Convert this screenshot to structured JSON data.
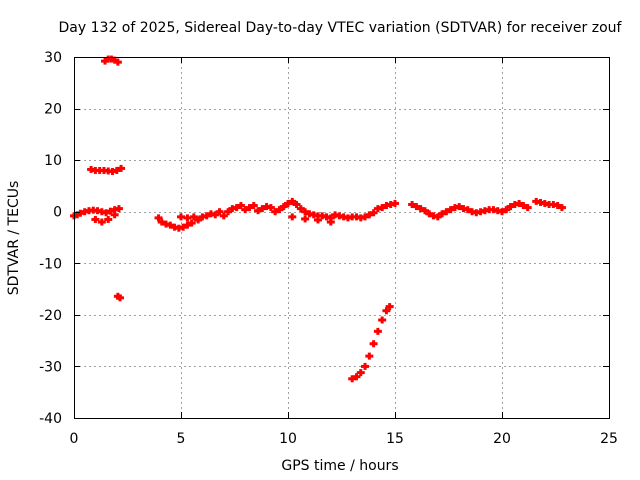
{
  "chart_data": {
    "type": "scatter",
    "title": "Day 132 of 2025, Sidereal Day-to-day VTEC variation (SDTVAR) for receiver zouf",
    "xlabel": "GPS time / hours",
    "ylabel": "SDTVAR / TECUs",
    "xlim": [
      0,
      25
    ],
    "ylim": [
      -40,
      30
    ],
    "xticks": [
      "0",
      "5",
      "10",
      "15",
      "20",
      "25"
    ],
    "yticks": [
      "30",
      "20",
      "10",
      "0",
      "-10",
      "-20",
      "-30",
      "-40"
    ],
    "grid": true,
    "legend": "none",
    "series": [
      {
        "name": "SDTVAR",
        "color": "#ff0000",
        "points": [
          [
            0.0,
            -0.8
          ],
          [
            0.15,
            -0.6
          ],
          [
            0.3,
            -0.3
          ],
          [
            0.5,
            0.0
          ],
          [
            0.7,
            0.2
          ],
          [
            0.9,
            0.3
          ],
          [
            1.1,
            0.2
          ],
          [
            1.3,
            0.0
          ],
          [
            1.5,
            -0.2
          ],
          [
            1.7,
            0.1
          ],
          [
            1.9,
            0.4
          ],
          [
            2.1,
            0.6
          ],
          [
            1.0,
            -1.5
          ],
          [
            1.3,
            -2.0
          ],
          [
            1.6,
            -1.5
          ],
          [
            1.9,
            -0.6
          ],
          [
            0.8,
            8.2
          ],
          [
            1.0,
            8.0
          ],
          [
            1.2,
            8.0
          ],
          [
            1.4,
            8.0
          ],
          [
            1.6,
            7.9
          ],
          [
            1.8,
            7.8
          ],
          [
            2.0,
            8.0
          ],
          [
            2.2,
            8.4
          ],
          [
            1.45,
            29.2
          ],
          [
            1.6,
            29.6
          ],
          [
            1.75,
            29.6
          ],
          [
            1.9,
            29.4
          ],
          [
            2.05,
            29.0
          ],
          [
            2.05,
            -16.4
          ],
          [
            2.15,
            -16.7
          ],
          [
            3.95,
            -1.2
          ],
          [
            4.1,
            -2.0
          ],
          [
            4.3,
            -2.4
          ],
          [
            4.5,
            -2.6
          ],
          [
            4.7,
            -3.0
          ],
          [
            4.9,
            -3.2
          ],
          [
            5.1,
            -3.0
          ],
          [
            5.3,
            -2.6
          ],
          [
            5.5,
            -2.2
          ],
          [
            5.0,
            -1.0
          ],
          [
            5.3,
            -1.2
          ],
          [
            5.6,
            -1.0
          ],
          [
            5.8,
            -1.6
          ],
          [
            6.0,
            -1.0
          ],
          [
            6.2,
            -0.8
          ],
          [
            6.4,
            -0.4
          ],
          [
            6.6,
            -0.6
          ],
          [
            6.8,
            0.0
          ],
          [
            7.0,
            -0.8
          ],
          [
            7.2,
            0.0
          ],
          [
            7.4,
            0.6
          ],
          [
            7.6,
            0.8
          ],
          [
            7.8,
            1.2
          ],
          [
            8.0,
            0.4
          ],
          [
            8.2,
            0.8
          ],
          [
            8.4,
            1.2
          ],
          [
            8.6,
            0.2
          ],
          [
            8.8,
            0.6
          ],
          [
            9.0,
            1.0
          ],
          [
            9.2,
            0.8
          ],
          [
            9.4,
            0.0
          ],
          [
            9.6,
            0.4
          ],
          [
            9.8,
            1.0
          ],
          [
            10.0,
            1.6
          ],
          [
            10.2,
            2.0
          ],
          [
            10.4,
            1.4
          ],
          [
            10.6,
            0.6
          ],
          [
            10.8,
            0.0
          ],
          [
            11.0,
            -0.4
          ],
          [
            11.2,
            -0.6
          ],
          [
            11.4,
            -0.8
          ],
          [
            11.6,
            -0.8
          ],
          [
            11.8,
            -1.0
          ],
          [
            12.0,
            -1.2
          ],
          [
            12.2,
            -0.6
          ],
          [
            12.4,
            -0.8
          ],
          [
            12.6,
            -1.0
          ],
          [
            12.8,
            -1.2
          ],
          [
            13.0,
            -1.0
          ],
          [
            13.2,
            -1.0
          ],
          [
            13.4,
            -1.2
          ],
          [
            13.6,
            -1.0
          ],
          [
            13.8,
            -0.6
          ],
          [
            14.0,
            -0.2
          ],
          [
            14.2,
            0.6
          ],
          [
            14.4,
            0.8
          ],
          [
            14.6,
            1.2
          ],
          [
            14.8,
            1.4
          ],
          [
            15.0,
            1.6
          ],
          [
            10.2,
            -1.0
          ],
          [
            10.8,
            -1.4
          ],
          [
            11.4,
            -1.6
          ],
          [
            12.0,
            -2.0
          ],
          [
            15.8,
            1.4
          ],
          [
            16.0,
            1.0
          ],
          [
            16.2,
            0.6
          ],
          [
            16.4,
            0.2
          ],
          [
            16.6,
            -0.4
          ],
          [
            16.8,
            -0.8
          ],
          [
            17.0,
            -1.0
          ],
          [
            17.2,
            -0.4
          ],
          [
            17.4,
            0.0
          ],
          [
            17.6,
            0.4
          ],
          [
            17.8,
            0.8
          ],
          [
            18.0,
            1.0
          ],
          [
            18.2,
            0.6
          ],
          [
            18.4,
            0.4
          ],
          [
            18.6,
            0.0
          ],
          [
            18.8,
            -0.2
          ],
          [
            19.0,
            0.0
          ],
          [
            19.2,
            0.2
          ],
          [
            19.4,
            0.4
          ],
          [
            19.6,
            0.4
          ],
          [
            19.8,
            0.2
          ],
          [
            20.0,
            0.0
          ],
          [
            20.2,
            0.4
          ],
          [
            20.4,
            1.0
          ],
          [
            20.6,
            1.4
          ],
          [
            20.8,
            1.6
          ],
          [
            21.0,
            1.2
          ],
          [
            21.2,
            0.8
          ],
          [
            21.6,
            2.0
          ],
          [
            21.8,
            1.8
          ],
          [
            22.0,
            1.6
          ],
          [
            22.2,
            1.4
          ],
          [
            22.4,
            1.4
          ],
          [
            22.6,
            1.2
          ],
          [
            22.8,
            0.8
          ],
          [
            13.0,
            -32.4
          ],
          [
            13.2,
            -32.0
          ],
          [
            13.4,
            -31.2
          ],
          [
            13.6,
            -30.0
          ],
          [
            13.8,
            -28.0
          ],
          [
            14.0,
            -25.6
          ],
          [
            14.2,
            -23.2
          ],
          [
            14.4,
            -21.0
          ],
          [
            14.6,
            -19.2
          ],
          [
            14.75,
            -18.4
          ]
        ]
      }
    ]
  }
}
